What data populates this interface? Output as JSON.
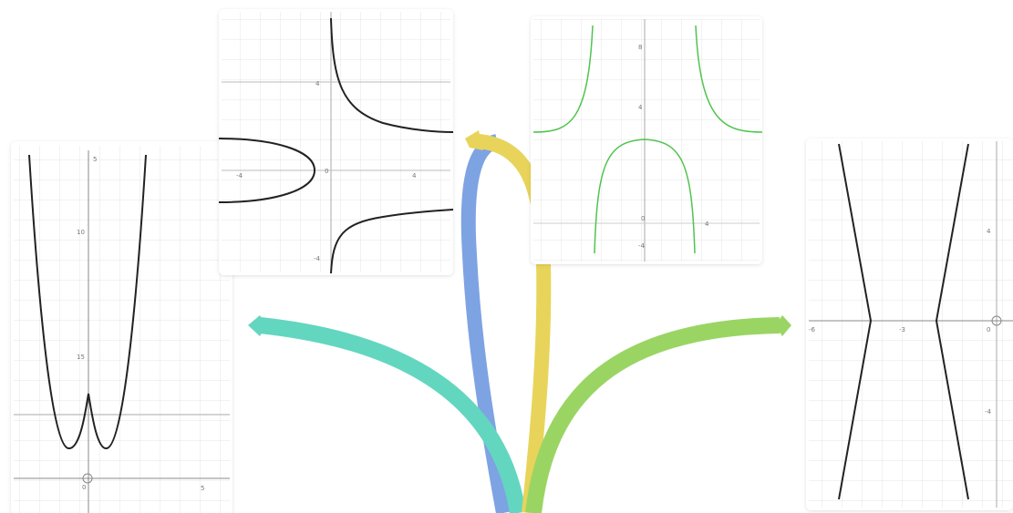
{
  "panels": [
    {
      "labels": [
        "5",
        "10",
        "15",
        "0",
        "5"
      ]
    },
    {
      "labels": [
        "4",
        "-4",
        "0",
        "4",
        "-4"
      ]
    },
    {
      "labels": [
        "8",
        "4",
        "0",
        "-4",
        "4"
      ]
    },
    {
      "labels": [
        "-6",
        "-3",
        "0",
        "4",
        "-4"
      ]
    }
  ]
}
